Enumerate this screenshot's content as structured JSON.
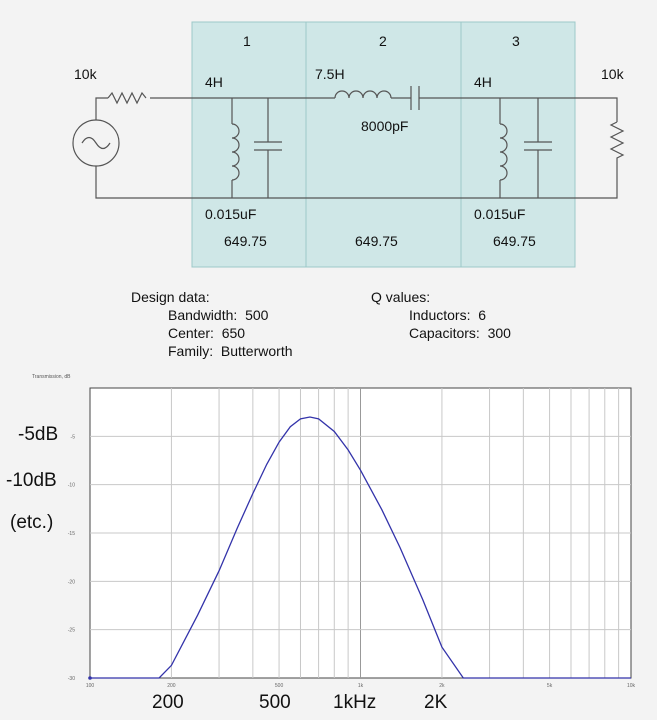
{
  "circuit": {
    "sections": [
      "1",
      "2",
      "3"
    ],
    "source_resistor": "10k",
    "load_resistor": "10k",
    "section1": {
      "inductor": "4H",
      "capacitor": "0.015uF",
      "freq": "649.75"
    },
    "section2": {
      "inductor": "7.5H",
      "capacitor": "8000pF",
      "freq": "649.75"
    },
    "section3": {
      "inductor": "4H",
      "capacitor": "0.015uF",
      "freq": "649.75"
    },
    "section_fill": "#cfe7e7",
    "section_border": "#9cc8c8"
  },
  "design": {
    "heading": "Design data:",
    "rows": [
      {
        "key": "Bandwidth:",
        "value": "500"
      },
      {
        "key": "Center:",
        "value": "650"
      },
      {
        "key": "Family:",
        "value": "Butterworth"
      }
    ]
  },
  "q_values": {
    "heading": "Q values:",
    "rows": [
      {
        "key": "Inductors:",
        "value": "6"
      },
      {
        "key": "Capacitors:",
        "value": "300"
      }
    ]
  },
  "chart_data": {
    "type": "line",
    "title": "Transmission, dB",
    "x_scale": "log",
    "xlim": [
      100,
      10000
    ],
    "ylim": [
      -30,
      0
    ],
    "grid": true,
    "y_tick_labels": [
      "-5",
      "-10",
      "-15",
      "-20",
      "-25",
      "-30"
    ],
    "x_tick_labels": [
      "100",
      "200",
      "500",
      "1k",
      "2k",
      "5k",
      "10k"
    ],
    "series": [
      {
        "color": "#3333aa",
        "x": [
          100,
          180,
          200,
          250,
          300,
          350,
          400,
          450,
          500,
          550,
          600,
          650,
          700,
          800,
          900,
          1000,
          1200,
          1400,
          1700,
          2000,
          2400,
          10000
        ],
        "y": [
          -30,
          -30,
          -28.7,
          -23.5,
          -18.9,
          -14.5,
          -10.9,
          -7.9,
          -5.6,
          -4.0,
          -3.2,
          -3.0,
          -3.2,
          -4.5,
          -6.4,
          -8.5,
          -12.6,
          -16.5,
          -21.9,
          -26.8,
          -30,
          -30
        ]
      }
    ],
    "overlay_labels": {
      "y": [
        "-5dB",
        "-10dB",
        "(etc.)"
      ],
      "x": [
        "200",
        "500",
        "1kHz",
        "2K"
      ]
    }
  }
}
